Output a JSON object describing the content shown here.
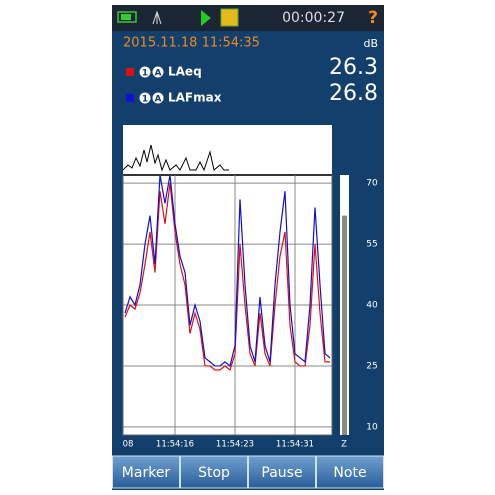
{
  "status_bar": {
    "timer": "00:00:27",
    "help": "?"
  },
  "date": "2015.11.18 11:54:35",
  "unit": "dB",
  "readings": [
    {
      "channel": "1",
      "weighting": "A",
      "name": "LAeq",
      "value": 26.3
    },
    {
      "channel": "1",
      "weighting": "A",
      "name": "LAFmax",
      "value": 26.8
    }
  ],
  "chart_data": {
    "type": "line",
    "categories": [
      "08",
      null,
      null,
      null,
      null,
      null,
      null,
      null,
      null,
      null,
      "11:54:16",
      null,
      null,
      null,
      null,
      null,
      null,
      null,
      null,
      null,
      null,
      null,
      "11:54:23",
      null,
      null,
      null,
      null,
      null,
      null,
      null,
      null,
      null,
      null,
      null,
      "11:54:31",
      null,
      null,
      null,
      null,
      null,
      null,
      null
    ],
    "series": [
      {
        "name": "LAeq",
        "color": "#e01010",
        "values": [
          37,
          40,
          39,
          43,
          50,
          58,
          48,
          68,
          60,
          70,
          58,
          50,
          45,
          33,
          38,
          34,
          25,
          25,
          24,
          24,
          25,
          24,
          28,
          55,
          40,
          28,
          25,
          38,
          28,
          25,
          40,
          52,
          58,
          35,
          26,
          25,
          25,
          35,
          55,
          38,
          26,
          26
        ]
      },
      {
        "name": "LAFmax",
        "color": "#1010d0",
        "values": [
          38,
          42,
          40,
          45,
          55,
          62,
          50,
          72,
          65,
          72,
          60,
          52,
          48,
          35,
          40,
          36,
          27,
          26,
          25,
          25,
          26,
          25,
          30,
          66,
          45,
          30,
          26,
          42,
          30,
          26,
          45,
          58,
          68,
          40,
          28,
          27,
          26,
          40,
          64,
          45,
          28,
          27
        ]
      }
    ],
    "ylim": [
      8,
      72
    ],
    "yticks": [
      10,
      25,
      40,
      55,
      70
    ],
    "grid": true,
    "level": 62,
    "level_label": "Z"
  },
  "buttons": [
    "Marker",
    "Stop",
    "Pause",
    "Note"
  ]
}
